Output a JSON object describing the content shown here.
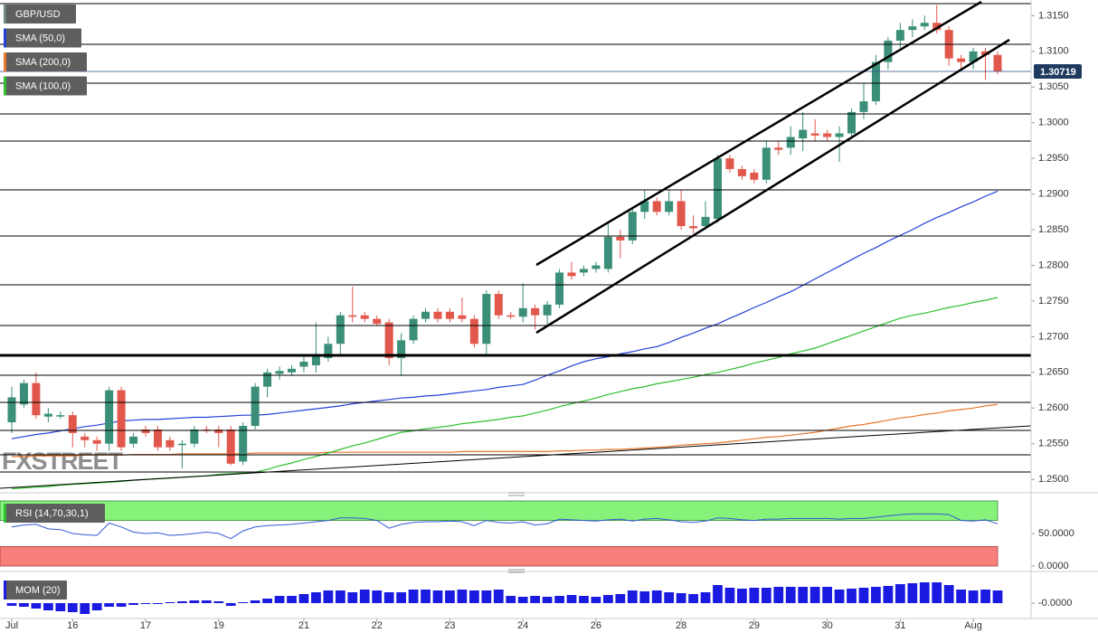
{
  "chart_data": [
    {
      "type": "candlestick",
      "categories": [
        "Jul",
        null,
        null,
        null,
        null,
        "16",
        null,
        null,
        null,
        null,
        null,
        "17",
        null,
        null,
        null,
        null,
        null,
        "19",
        null,
        null,
        null,
        null,
        null,
        null,
        "21",
        null,
        null,
        null,
        null,
        null,
        "22",
        null,
        null,
        null,
        null,
        null,
        "23",
        null,
        null,
        null,
        null,
        null,
        "24",
        null,
        null,
        null,
        null,
        null,
        "26",
        null,
        null,
        null,
        null,
        null,
        null,
        "28",
        null,
        null,
        null,
        null,
        null,
        "29",
        null,
        null,
        null,
        null,
        null,
        "30",
        null,
        null,
        null,
        null,
        null,
        "31",
        null,
        null,
        null,
        null,
        null,
        "Aug",
        null,
        null
      ],
      "series": [
        {
          "name": "GBP/USD",
          "color": "#6f8580",
          "up_color": "#3b8f78",
          "down_color": "#e2574c",
          "open": [
            1.258,
            1.2605,
            1.2635,
            1.2588,
            1.259,
            1.259,
            1.256,
            1.2555,
            1.255,
            1.2625,
            1.255,
            1.257,
            1.257,
            1.2555,
            1.255,
            1.255,
            1.257,
            1.257,
            1.257,
            1.2525,
            1.2575,
            1.263,
            1.2648,
            1.265,
            1.2658,
            1.266,
            1.267,
            1.269,
            1.273,
            1.273,
            1.2725,
            1.272,
            1.267,
            1.2695,
            1.2725,
            1.2735,
            1.2735,
            1.273,
            1.2725,
            1.269,
            1.276,
            1.273,
            1.2728,
            1.274,
            1.273,
            1.2745,
            1.279,
            1.279,
            1.2795,
            1.2795,
            1.284,
            1.2835,
            1.2875,
            1.289,
            1.2875,
            1.289,
            1.2855,
            1.2855,
            1.2865,
            1.295,
            1.2935,
            1.293,
            1.292,
            1.2965,
            1.2965,
            1.2978,
            1.2985,
            1.2985,
            1.298,
            1.2985,
            1.3015,
            1.303,
            1.3085,
            1.3115,
            1.313,
            1.3135,
            1.314,
            1.313,
            1.309,
            1.3085,
            1.31,
            1.3095
          ],
          "high": [
            1.263,
            1.264,
            1.265,
            1.26,
            1.2595,
            1.2595,
            1.2565,
            1.256,
            1.263,
            1.263,
            1.2565,
            1.2575,
            1.2575,
            1.256,
            1.2555,
            1.2575,
            1.2575,
            1.2575,
            1.2575,
            1.258,
            1.2635,
            1.2655,
            1.2658,
            1.266,
            1.2675,
            1.272,
            1.27,
            1.2735,
            1.277,
            1.2735,
            1.273,
            1.2725,
            1.2705,
            1.273,
            1.274,
            1.274,
            1.274,
            1.2755,
            1.273,
            1.2765,
            1.2765,
            1.2735,
            1.2775,
            1.2745,
            1.275,
            1.2795,
            1.2805,
            1.28,
            1.2805,
            1.286,
            1.285,
            1.288,
            1.2905,
            1.2895,
            1.2905,
            1.2905,
            1.287,
            1.289,
            1.2955,
            1.2955,
            1.294,
            1.2935,
            1.2975,
            1.2975,
            1.2995,
            1.3015,
            1.3005,
            1.299,
            1.2995,
            1.302,
            1.3055,
            1.3095,
            1.312,
            1.314,
            1.3145,
            1.315,
            1.3165,
            1.3135,
            1.3095,
            1.3105,
            1.3105,
            1.31
          ],
          "low": [
            1.2565,
            1.26,
            1.2585,
            1.258,
            1.2585,
            1.2545,
            1.2545,
            1.254,
            1.254,
            1.254,
            1.2545,
            1.256,
            1.254,
            1.254,
            1.2515,
            1.2545,
            1.2565,
            1.2545,
            1.252,
            1.252,
            1.257,
            1.2615,
            1.264,
            1.2645,
            1.265,
            1.265,
            1.2665,
            1.2675,
            1.272,
            1.272,
            1.2715,
            1.266,
            1.2645,
            1.269,
            1.272,
            1.272,
            1.272,
            1.272,
            1.2685,
            1.2675,
            1.2725,
            1.2725,
            1.272,
            1.271,
            1.2715,
            1.274,
            1.278,
            1.2785,
            1.279,
            1.279,
            1.281,
            1.283,
            1.2865,
            1.287,
            1.287,
            1.285,
            1.2845,
            1.285,
            1.286,
            1.293,
            1.292,
            1.2915,
            1.2915,
            1.2955,
            1.2955,
            1.296,
            1.2975,
            1.2975,
            1.2945,
            1.298,
            1.3005,
            1.3025,
            1.3075,
            1.3105,
            1.312,
            1.313,
            1.3125,
            1.308,
            1.3075,
            1.3075,
            1.306,
            1.3068
          ],
          "close": [
            1.2615,
            1.2635,
            1.259,
            1.2592,
            1.259,
            1.2565,
            1.2555,
            1.255,
            1.2625,
            1.2545,
            1.256,
            1.2565,
            1.2545,
            1.2545,
            1.255,
            1.257,
            1.2568,
            1.2565,
            1.2522,
            1.2575,
            1.263,
            1.265,
            1.2652,
            1.2655,
            1.2665,
            1.2675,
            1.269,
            1.273,
            1.2728,
            1.2725,
            1.2718,
            1.267,
            1.2695,
            1.2725,
            1.2735,
            1.2725,
            1.2725,
            1.2725,
            1.269,
            1.276,
            1.273,
            1.2728,
            1.274,
            1.273,
            1.2745,
            1.279,
            1.2785,
            1.2795,
            1.28,
            1.284,
            1.2835,
            1.2875,
            1.289,
            1.2875,
            1.289,
            1.2855,
            1.2852,
            1.2868,
            1.295,
            1.2935,
            1.2925,
            1.292,
            1.2965,
            1.2962,
            1.298,
            1.299,
            1.2982,
            1.298,
            1.2985,
            1.3015,
            1.303,
            1.3085,
            1.3115,
            1.313,
            1.3135,
            1.314,
            1.313,
            1.309,
            1.3085,
            1.31,
            1.3095,
            1.3072
          ]
        },
        {
          "name": "SMA (50,0)",
          "color": "#2540d8",
          "values": [
            1.2557,
            1.256,
            1.2563,
            1.2565,
            1.2568,
            1.2571,
            1.2574,
            1.2576,
            1.2579,
            1.2582,
            1.2583,
            1.2584,
            1.2584,
            1.2585,
            1.2586,
            1.2587,
            1.2587,
            1.2588,
            1.2589,
            1.259,
            1.259,
            1.2591,
            1.2593,
            1.2595,
            1.2597,
            1.2599,
            1.2601,
            1.2603,
            1.2606,
            1.2608,
            1.261,
            1.2612,
            1.2614,
            1.2615,
            1.2617,
            1.2618,
            1.262,
            1.2622,
            1.2624,
            1.2626,
            1.2629,
            1.2631,
            1.2633,
            1.2639,
            1.2646,
            1.2652,
            1.2659,
            1.2665,
            1.2669,
            1.2672,
            1.2676,
            1.2679,
            1.2683,
            1.2686,
            1.2692,
            1.2699,
            1.2705,
            1.2712,
            1.2718,
            1.2726,
            1.2733,
            1.2741,
            1.2748,
            1.2756,
            1.2763,
            1.2772,
            1.2781,
            1.279,
            1.2799,
            1.2808,
            1.2817,
            1.2825,
            1.2834,
            1.2842,
            1.285,
            1.2859,
            1.2867,
            1.2874,
            1.2882,
            1.2889,
            1.2897,
            1.2904
          ]
        },
        {
          "name": "SMA (200,0)",
          "color": "#e8762b",
          "values": [
            1.2532,
            1.2532,
            1.2533,
            1.2533,
            1.2533,
            1.2533,
            1.2534,
            1.2534,
            1.2534,
            1.2534,
            1.2535,
            1.2535,
            1.2535,
            1.2535,
            1.2536,
            1.2536,
            1.2536,
            1.2536,
            1.2536,
            1.2536,
            1.2537,
            1.2537,
            1.2537,
            1.2537,
            1.2537,
            1.2537,
            1.2538,
            1.2538,
            1.2538,
            1.2538,
            1.2538,
            1.2538,
            1.2538,
            1.2538,
            1.2538,
            1.2538,
            1.2538,
            1.2539,
            1.2539,
            1.2539,
            1.2539,
            1.2539,
            1.2539,
            1.2539,
            1.2539,
            1.254,
            1.254,
            1.2541,
            1.2541,
            1.2542,
            1.2542,
            1.2543,
            1.2544,
            1.2545,
            1.2546,
            1.2548,
            1.2549,
            1.255,
            1.2551,
            1.2553,
            1.2555,
            1.2557,
            1.2559,
            1.256,
            1.2562,
            1.2564,
            1.2566,
            1.2569,
            1.2572,
            1.2575,
            1.2577,
            1.258,
            1.2583,
            1.2586,
            1.2588,
            1.2591,
            1.2593,
            1.2596,
            1.2598,
            1.26,
            1.2603,
            1.2605
          ]
        },
        {
          "name": "SMA (100,0)",
          "color": "#2fbf2f",
          "values": [
            1.2487,
            1.2488,
            1.2489,
            1.249,
            1.2492,
            1.2493,
            1.2494,
            1.2495,
            1.2496,
            1.2497,
            1.2499,
            1.25,
            1.2501,
            1.2502,
            1.2503,
            1.2504,
            1.2505,
            1.2507,
            1.2508,
            1.2509,
            1.251,
            1.2514,
            1.2519,
            1.2523,
            1.2528,
            1.2532,
            1.2537,
            1.2542,
            1.2547,
            1.2551,
            1.2556,
            1.2561,
            1.2566,
            1.2568,
            1.2571,
            1.2573,
            1.2575,
            1.2578,
            1.258,
            1.2582,
            1.2584,
            1.2587,
            1.2589,
            1.2593,
            1.2597,
            1.2602,
            1.2606,
            1.261,
            1.2614,
            1.2619,
            1.2623,
            1.2627,
            1.263,
            1.2634,
            1.2637,
            1.264,
            1.2643,
            1.2647,
            1.265,
            1.2654,
            1.2658,
            1.2663,
            1.2667,
            1.2671,
            1.2676,
            1.268,
            1.2684,
            1.269,
            1.2696,
            1.2702,
            1.2708,
            1.2714,
            1.272,
            1.2726,
            1.273,
            1.2733,
            1.2737,
            1.2741,
            1.2744,
            1.2748,
            1.2751,
            1.2755
          ]
        }
      ],
      "ylim": [
        1.2485,
        1.3172
      ],
      "yticks": [
        {
          "value": 1.25,
          "label": "1.2500"
        },
        {
          "value": 1.255,
          "label": "1.2550"
        },
        {
          "value": 1.26,
          "label": "1.2600"
        },
        {
          "value": 1.265,
          "label": "1.2650"
        },
        {
          "value": 1.27,
          "label": "1.2700"
        },
        {
          "value": 1.275,
          "label": "1.2750"
        },
        {
          "value": 1.28,
          "label": "1.2800"
        },
        {
          "value": 1.285,
          "label": "1.2850"
        },
        {
          "value": 1.29,
          "label": "1.2900"
        },
        {
          "value": 1.295,
          "label": "1.2950"
        },
        {
          "value": 1.3,
          "label": "1.3000"
        },
        {
          "value": 1.305,
          "label": "1.3050"
        },
        {
          "value": 1.31,
          "label": "1.3100"
        },
        {
          "value": 1.315,
          "label": "1.3150"
        }
      ],
      "last_price": 1.30719,
      "watermark": "FXSTREET"
    },
    {
      "type": "line",
      "title": "RSI (14,70,30,1)",
      "color": "#3358d6",
      "values": [
        60,
        63,
        64,
        57,
        56,
        50,
        48,
        47,
        66,
        60,
        52,
        50,
        51,
        47,
        48,
        50,
        52,
        50,
        42,
        54,
        60,
        62,
        63,
        64,
        66,
        68,
        70,
        74,
        74,
        73,
        70,
        58,
        64,
        67,
        68,
        68,
        69,
        68,
        62,
        70,
        67,
        66,
        68,
        63,
        65,
        72,
        71,
        70,
        69,
        71,
        72,
        69,
        72,
        73,
        71,
        68,
        67,
        69,
        74,
        73,
        71,
        70,
        72,
        72,
        73,
        73,
        73,
        73,
        72,
        73,
        73,
        75,
        77,
        79,
        80,
        80,
        80,
        79,
        70,
        69,
        71,
        65
      ],
      "overbought": 70,
      "oversold": 30,
      "ylim": [
        -5.6,
        108.3
      ],
      "yticks": [
        {
          "value": 50,
          "label": "50.0000"
        },
        {
          "value": 0,
          "label": "0.0000"
        }
      ]
    },
    {
      "type": "bar",
      "title": "MOM (20)",
      "color": "#1a1ae0",
      "values": [
        -0.0021,
        -0.0028,
        -0.0042,
        -0.0056,
        -0.0063,
        -0.007,
        -0.0084,
        -0.0056,
        -0.0028,
        -0.0028,
        -0.0014,
        -0.0007,
        -0.0007,
        0.0007,
        0.0014,
        0.0021,
        0.0021,
        0.0014,
        -0.0021,
        0.0007,
        0.0021,
        0.0035,
        0.0056,
        0.0056,
        0.007,
        0.0084,
        0.0098,
        0.0098,
        0.0084,
        0.0105,
        0.0098,
        0.0084,
        0.0084,
        0.0105,
        0.0105,
        0.0098,
        0.0098,
        0.0105,
        0.0098,
        0.0098,
        0.0105,
        0.0056,
        0.0049,
        0.0056,
        0.0049,
        0.0056,
        0.0063,
        0.0056,
        0.0049,
        0.0063,
        0.007,
        0.0098,
        0.0091,
        0.0098,
        0.0084,
        0.0077,
        0.007,
        0.0084,
        0.014,
        0.0119,
        0.0112,
        0.0119,
        0.0119,
        0.0126,
        0.0126,
        0.0126,
        0.0126,
        0.0126,
        0.0105,
        0.0112,
        0.0119,
        0.0126,
        0.0133,
        0.0147,
        0.0154,
        0.0161,
        0.0161,
        0.014,
        0.0105,
        0.0098,
        0.0105,
        0.0098
      ],
      "ylim": [
        -0.0105,
        0.0231
      ],
      "yticks": [
        {
          "value": 0,
          "label": "-0.0000"
        }
      ]
    }
  ]
}
